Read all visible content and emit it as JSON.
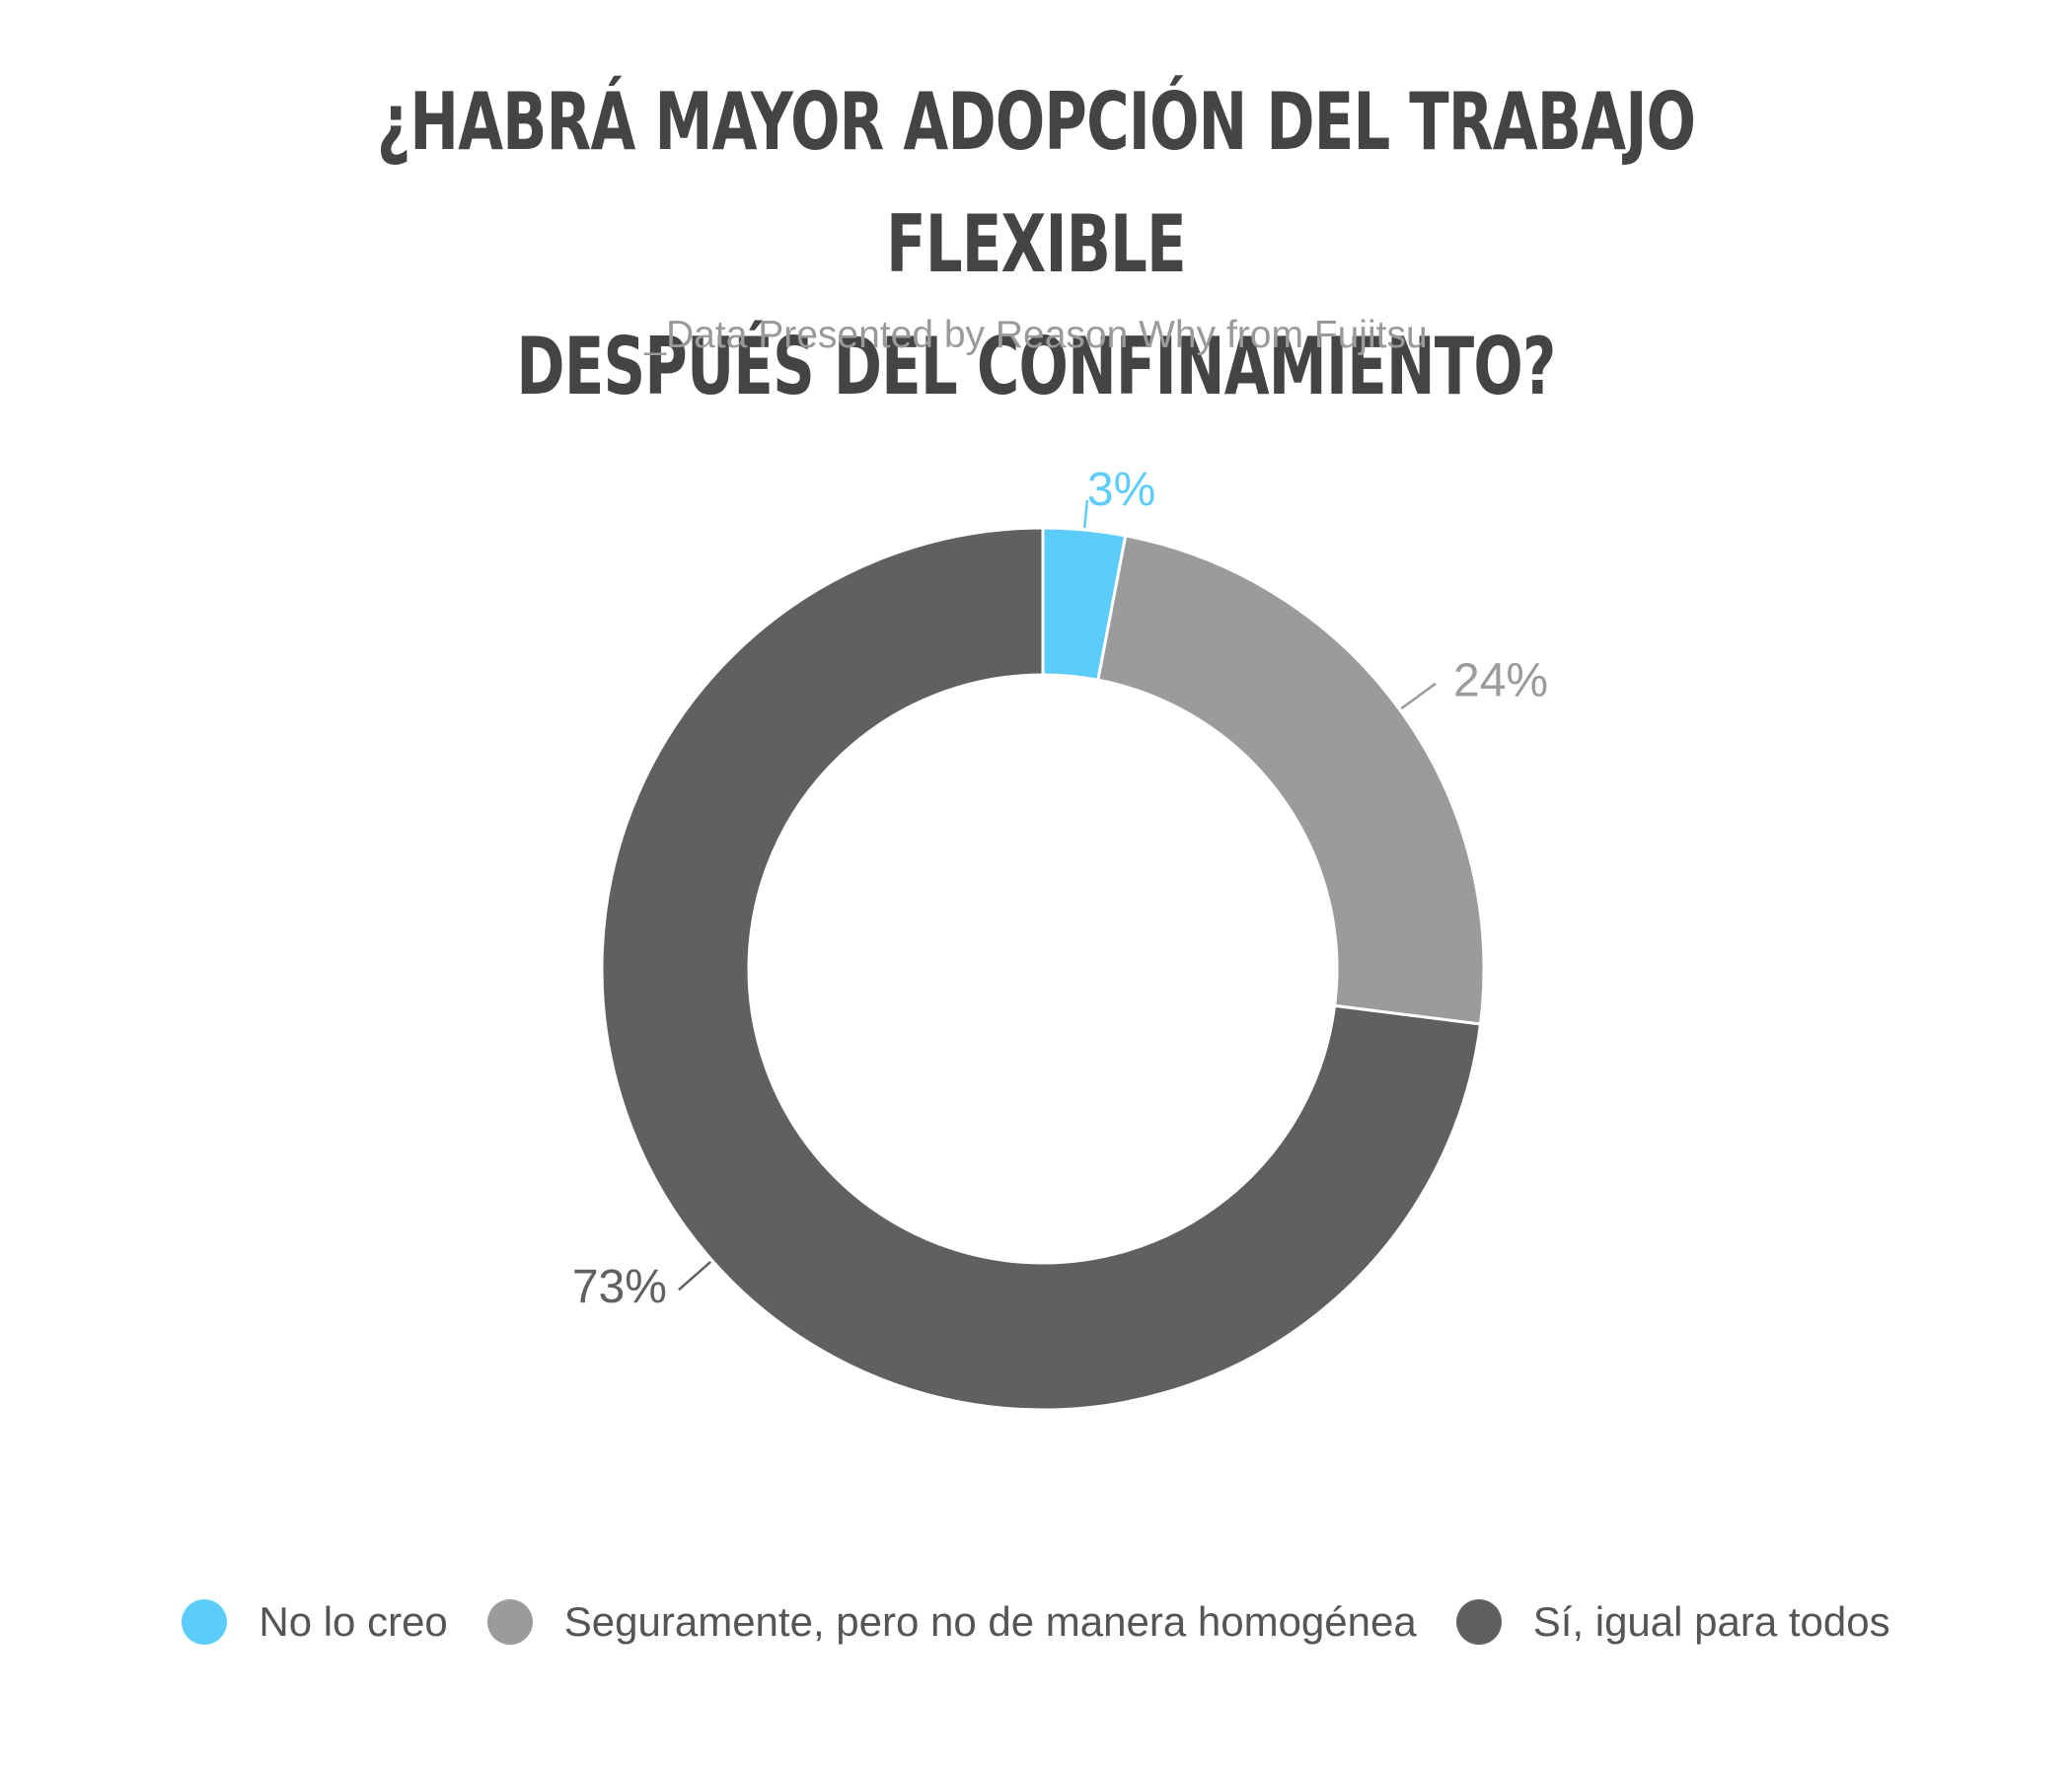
{
  "header": {
    "title_line1": "¿HABRÁ MAYOR ADOPCIÓN DEL TRABAJO FLEXIBLE",
    "title_line2": "DESPUÉS DEL CONFINAMIENTO?",
    "subtitle": "_Data Presented by Reason Why from Fujitsu"
  },
  "chart_data": {
    "type": "pie",
    "donut": true,
    "title": "¿HABRÁ MAYOR ADOPCIÓN DEL TRABAJO FLEXIBLE DESPUÉS DEL CONFINAMIENTO?",
    "subtitle": "_Data Presented by Reason Why from Fujitsu",
    "legend_position": "bottom",
    "slices": [
      {
        "label": "No lo creo",
        "value": 3,
        "display": "3%",
        "color": "#5ccdfb"
      },
      {
        "label": "Seguramente, pero no de manera homogénea",
        "value": 24,
        "display": "24%",
        "color": "#9b9b9b"
      },
      {
        "label": "Sí, igual para todos",
        "value": 73,
        "display": "73%",
        "color": "#606060"
      }
    ]
  }
}
